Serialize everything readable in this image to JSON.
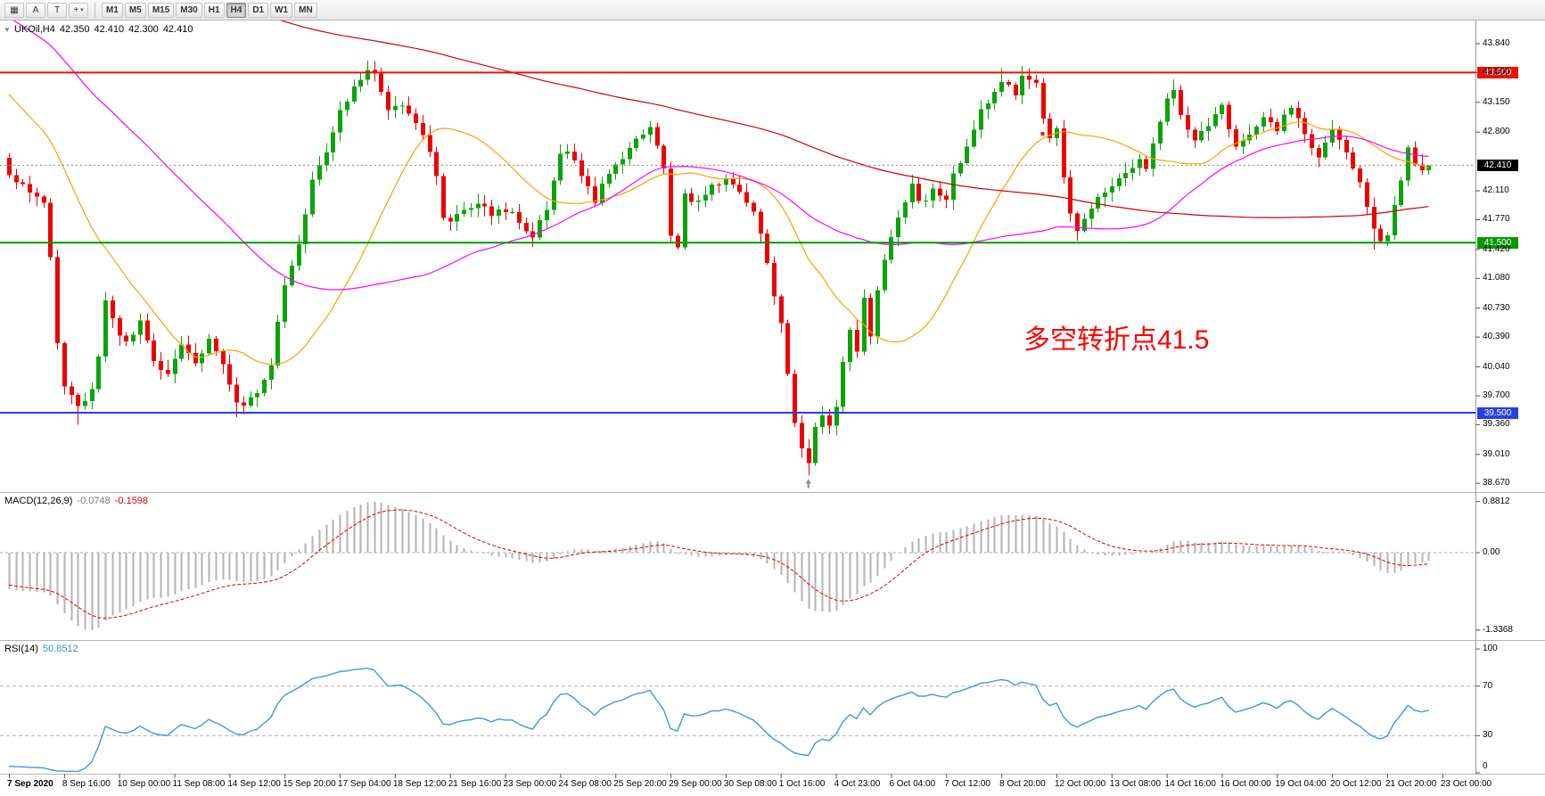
{
  "toolbar": {
    "icon_buttons": [
      {
        "name": "chart-grid",
        "glyph": "▦",
        "dropdown": false
      },
      {
        "name": "cursor-tool",
        "glyph": "A",
        "dropdown": false
      },
      {
        "name": "text-tool",
        "glyph": "T",
        "dropdown": false
      },
      {
        "name": "indicators-dropdown",
        "glyph": "+",
        "dropdown": true
      }
    ],
    "caret_glyph": "▾",
    "timeframes": [
      "M1",
      "M5",
      "M15",
      "M30",
      "H1",
      "H4",
      "D1",
      "W1",
      "MN"
    ],
    "active_timeframe": "H4"
  },
  "main_chart": {
    "collapse_arrow": "▼",
    "header": {
      "symbol": "UKOil,H4",
      "open": "42.350",
      "high": "42.410",
      "low": "42.300",
      "close": "42.410"
    },
    "annotation": {
      "text": "多空转折点41.5",
      "color": "#ff0000"
    },
    "price_axis_labels": [
      "43.840",
      "43.500",
      "43.150",
      "42.800",
      "42.110",
      "41.770",
      "41.420",
      "41.080",
      "40.730",
      "40.390",
      "40.040",
      "39.700",
      "39.360",
      "39.010",
      "38.670"
    ],
    "hlines": [
      {
        "price": 43.5,
        "badge": "43.500",
        "color": "#ee1100"
      },
      {
        "price": 41.5,
        "badge": "41.500",
        "color": "#009b00"
      },
      {
        "price": 39.5,
        "badge": "39.500",
        "color": "#2a3fe0"
      }
    ],
    "bid": {
      "price": 42.41,
      "badge": "42.410",
      "badge_bg": "#000000",
      "line_color": "#888888"
    }
  },
  "macd_panel": {
    "title": "MACD(12,26,9)",
    "value_main": "-0.0748",
    "value_signal": "-0.1598",
    "scale_labels": [
      {
        "text": "0.8812",
        "value": 0.8812
      },
      {
        "text": "0.00",
        "value": 0
      },
      {
        "text": "-1.3368",
        "value": -1.3368
      }
    ]
  },
  "rsi_panel": {
    "title": "RSI(14)",
    "value": "50.8512",
    "scale_labels": [
      {
        "text": "100",
        "value": 100
      },
      {
        "text": "70",
        "value": 70
      },
      {
        "text": "30",
        "value": 30
      },
      {
        "text": "0",
        "value": 0
      }
    ],
    "levels": [
      70,
      30
    ]
  },
  "time_axis": {
    "labels": [
      "7 Sep 2020",
      "8 Sep 16:00",
      "10 Sep 00:00",
      "11 Sep 08:00",
      "14 Sep 12:00",
      "15 Sep 20:00",
      "17 Sep 04:00",
      "18 Sep 12:00",
      "21 Sep 16:00",
      "23 Sep 00:00",
      "24 Sep 08:00",
      "25 Sep 20:00",
      "29 Sep 00:00",
      "30 Sep 08:00",
      "1 Oct 16:00",
      "4 Oct 23:00",
      "6 Oct 04:00",
      "7 Oct 12:00",
      "8 Oct 20:00",
      "12 Oct 00:00",
      "13 Oct 08:00",
      "14 Oct 16:00",
      "16 Oct 00:00",
      "19 Oct 04:00",
      "20 Oct 12:00",
      "21 Oct 20:00",
      "23 Oct 00:00"
    ],
    "bars_per_label": 8
  },
  "chart_data": {
    "type": "candlestick",
    "symbol": "UKOil",
    "timeframe": "H4",
    "bars": 207,
    "axis_top_price": 43.84,
    "axis_bottom_price": 38.67,
    "close_waypoints": [
      [
        0,
        42.28
      ],
      [
        2,
        42.16
      ],
      [
        4,
        42.05
      ],
      [
        5,
        41.95
      ],
      [
        6,
        41.3
      ],
      [
        7,
        40.3
      ],
      [
        8,
        39.85
      ],
      [
        10,
        39.55
      ],
      [
        12,
        39.75
      ],
      [
        13,
        40.2
      ],
      [
        14,
        40.8
      ],
      [
        15,
        40.6
      ],
      [
        17,
        40.3
      ],
      [
        19,
        40.55
      ],
      [
        21,
        40.1
      ],
      [
        23,
        39.95
      ],
      [
        25,
        40.3
      ],
      [
        27,
        40.1
      ],
      [
        29,
        40.35
      ],
      [
        31,
        40.1
      ],
      [
        33,
        39.65
      ],
      [
        34,
        39.55
      ],
      [
        36,
        39.75
      ],
      [
        38,
        40.1
      ],
      [
        40,
        41.0
      ],
      [
        42,
        41.5
      ],
      [
        44,
        42.25
      ],
      [
        46,
        42.6
      ],
      [
        48,
        43.05
      ],
      [
        50,
        43.3
      ],
      [
        52,
        43.5
      ],
      [
        53,
        43.45
      ],
      [
        55,
        43.1
      ],
      [
        57,
        43.15
      ],
      [
        59,
        42.95
      ],
      [
        61,
        42.6
      ],
      [
        62,
        42.25
      ],
      [
        63,
        41.8
      ],
      [
        64,
        41.75
      ],
      [
        66,
        41.9
      ],
      [
        68,
        42.0
      ],
      [
        70,
        41.85
      ],
      [
        72,
        41.9
      ],
      [
        74,
        41.75
      ],
      [
        76,
        41.55
      ],
      [
        78,
        41.9
      ],
      [
        80,
        42.5
      ],
      [
        81,
        42.55
      ],
      [
        83,
        42.3
      ],
      [
        85,
        42.0
      ],
      [
        87,
        42.3
      ],
      [
        89,
        42.5
      ],
      [
        91,
        42.7
      ],
      [
        93,
        42.85
      ],
      [
        95,
        42.4
      ],
      [
        96,
        41.55
      ],
      [
        97,
        41.4
      ],
      [
        98,
        42.05
      ],
      [
        100,
        42.0
      ],
      [
        102,
        42.15
      ],
      [
        104,
        42.25
      ],
      [
        106,
        42.1
      ],
      [
        108,
        41.85
      ],
      [
        110,
        41.3
      ],
      [
        111,
        40.85
      ],
      [
        112,
        40.55
      ],
      [
        113,
        39.95
      ],
      [
        114,
        39.4
      ],
      [
        115,
        39.05
      ],
      [
        116,
        38.95
      ],
      [
        117,
        39.3
      ],
      [
        118,
        39.5
      ],
      [
        119,
        39.35
      ],
      [
        120,
        39.6
      ],
      [
        121,
        40.1
      ],
      [
        122,
        40.5
      ],
      [
        123,
        40.25
      ],
      [
        124,
        40.85
      ],
      [
        125,
        40.4
      ],
      [
        126,
        40.95
      ],
      [
        127,
        41.3
      ],
      [
        128,
        41.55
      ],
      [
        129,
        41.8
      ],
      [
        131,
        42.2
      ],
      [
        132,
        41.95
      ],
      [
        134,
        42.1
      ],
      [
        136,
        42.0
      ],
      [
        137,
        42.3
      ],
      [
        139,
        42.6
      ],
      [
        141,
        43.05
      ],
      [
        143,
        43.3
      ],
      [
        144,
        43.4
      ],
      [
        146,
        43.25
      ],
      [
        147,
        43.45
      ],
      [
        149,
        43.35
      ],
      [
        150,
        43.0
      ],
      [
        151,
        42.75
      ],
      [
        152,
        42.8
      ],
      [
        153,
        42.3
      ],
      [
        154,
        41.85
      ],
      [
        155,
        41.65
      ],
      [
        156,
        41.8
      ],
      [
        158,
        42.0
      ],
      [
        160,
        42.15
      ],
      [
        162,
        42.3
      ],
      [
        164,
        42.45
      ],
      [
        165,
        42.4
      ],
      [
        167,
        42.95
      ],
      [
        168,
        43.2
      ],
      [
        169,
        43.3
      ],
      [
        170,
        43.0
      ],
      [
        172,
        42.7
      ],
      [
        174,
        42.9
      ],
      [
        176,
        43.1
      ],
      [
        178,
        42.65
      ],
      [
        180,
        42.8
      ],
      [
        182,
        42.95
      ],
      [
        184,
        42.85
      ],
      [
        186,
        43.1
      ],
      [
        188,
        42.75
      ],
      [
        190,
        42.5
      ],
      [
        192,
        42.8
      ],
      [
        194,
        42.6
      ],
      [
        196,
        42.2
      ],
      [
        197,
        41.9
      ],
      [
        198,
        41.65
      ],
      [
        199,
        41.55
      ],
      [
        200,
        41.6
      ],
      [
        201,
        41.9
      ],
      [
        202,
        42.25
      ],
      [
        203,
        42.6
      ],
      [
        204,
        42.45
      ],
      [
        205,
        42.35
      ],
      [
        206,
        42.41
      ]
    ],
    "wick_overrides": {
      "highs": [
        [
          52,
          43.62
        ],
        [
          53,
          43.6
        ],
        [
          144,
          43.55
        ],
        [
          147,
          43.58
        ],
        [
          169,
          43.42
        ]
      ],
      "lows": [
        [
          10,
          39.36
        ],
        [
          33,
          39.45
        ],
        [
          116,
          38.76
        ],
        [
          198,
          41.42
        ]
      ]
    },
    "last_bar": {
      "open": 42.35,
      "high": 42.41,
      "low": 42.3,
      "close": 42.41
    },
    "prehistory_waypoints": [
      [
        -210,
        46.5
      ],
      [
        -80,
        45.5
      ],
      [
        -25,
        44.5
      ],
      [
        -1,
        42.5
      ]
    ],
    "moving_averages": [
      {
        "period": 21,
        "color": "#ffa000",
        "name": "ma-fast-orange"
      },
      {
        "period": 55,
        "color": "#ff00ff",
        "name": "ma-mid-magenta"
      },
      {
        "period": 190,
        "color": "#d40000",
        "name": "ma-slow-red"
      }
    ],
    "colors": {
      "up": "#0aa40a",
      "down": "#ee0000"
    },
    "markers": [
      {
        "bar": 116,
        "type": "up-arrow",
        "color": "#8a8a8a"
      },
      {
        "bar": 150,
        "type": "dot",
        "price": 42.78,
        "color": "#ff0000"
      }
    ],
    "indicators": [
      {
        "type": "macd",
        "fast": 12,
        "slow": 26,
        "signal": 9,
        "scale_max": 0.8812,
        "scale_min": -1.3368,
        "histogram_color": "#b3b3b3",
        "signal_color": "#e00000"
      },
      {
        "type": "rsi",
        "period": 14,
        "levels": [
          70,
          30
        ],
        "line_color": "#3f98dd",
        "current": 50.8512
      }
    ]
  }
}
